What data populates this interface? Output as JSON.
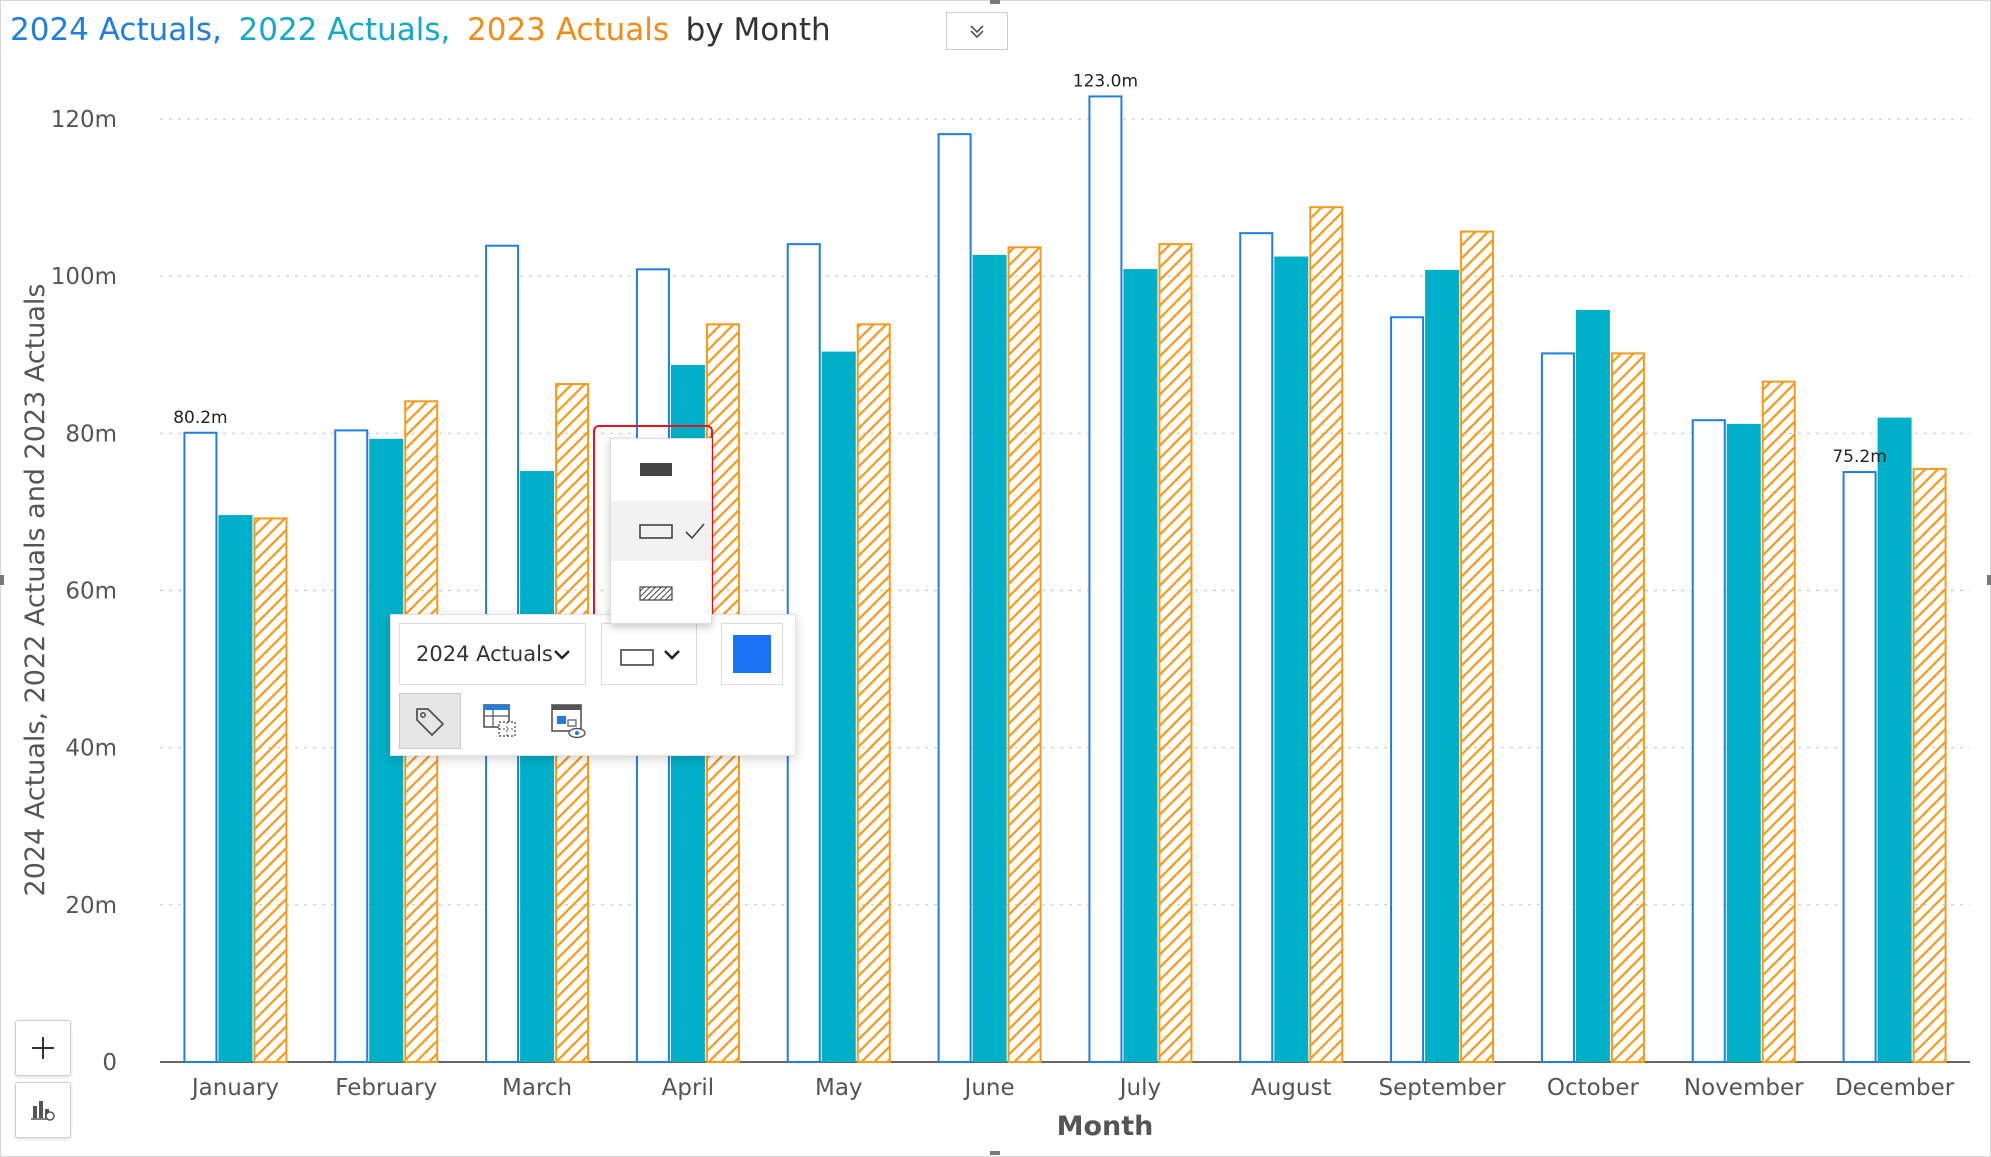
{
  "title_parts": [
    {
      "text": "2024 Actuals,",
      "color": "#1f7fe0"
    },
    {
      "text": "2022 Actuals,",
      "color": "#14a9c9"
    },
    {
      "text": "2023 Actuals",
      "color": "#f28c14"
    },
    {
      "text": "by Month",
      "color": "#333333"
    }
  ],
  "colors": {
    "series_2024": "#1f7fe0",
    "series_2022": "#00b0c8",
    "series_2023": "#f59a1b",
    "swatch": "#1a73f5",
    "highlight_outline": "#e81123"
  },
  "toolbar": {
    "series_select_value": "2024 Actuals",
    "fill_icon": "outline-rect-icon",
    "icons": [
      "tag-icon",
      "data-table-icon",
      "chart-view-icon"
    ]
  },
  "fill_dropdown": {
    "options": [
      {
        "name": "solid-fill",
        "icon": "solid-rect-icon",
        "selected": false
      },
      {
        "name": "outline-fill",
        "icon": "outline-rect-icon",
        "selected": true
      },
      {
        "name": "hatched-fill",
        "icon": "hatch-rect-icon",
        "selected": false
      }
    ]
  },
  "zoom": {
    "in_icon": "plus-icon",
    "reset_icon": "chart-zoom-icon"
  },
  "chart_data": {
    "type": "bar",
    "title": "2024 Actuals, 2022 Actuals, 2023 Actuals by Month",
    "xlabel": "Month",
    "ylabel": "2024 Actuals, 2022 Actuals and 2023 Actuals",
    "categories": [
      "January",
      "February",
      "March",
      "April",
      "May",
      "June",
      "July",
      "August",
      "September",
      "October",
      "November",
      "December"
    ],
    "series": [
      {
        "name": "2024 Actuals",
        "style": "outline",
        "values": [
          80.2,
          80.5,
          104.0,
          101.0,
          104.2,
          118.2,
          123.0,
          105.6,
          94.9,
          90.3,
          81.8,
          75.2
        ]
      },
      {
        "name": "2022 Actuals",
        "style": "solid",
        "values": [
          69.6,
          79.3,
          75.2,
          88.7,
          90.4,
          102.7,
          100.9,
          102.5,
          100.8,
          95.7,
          81.2,
          82.0
        ]
      },
      {
        "name": "2023 Actuals",
        "style": "hatched",
        "values": [
          69.3,
          84.2,
          86.4,
          94.0,
          94.0,
          103.8,
          104.2,
          108.9,
          105.8,
          90.3,
          86.7,
          75.6
        ]
      }
    ],
    "data_labels": [
      {
        "category": "January",
        "series": "2024 Actuals",
        "text": "80.2m"
      },
      {
        "category": "July",
        "series": "2024 Actuals",
        "text": "123.0m"
      },
      {
        "category": "December",
        "series": "2024 Actuals",
        "text": "75.2m"
      }
    ],
    "yticks": [
      {
        "value": 0,
        "label": "0"
      },
      {
        "value": 20,
        "label": "20m"
      },
      {
        "value": 40,
        "label": "40m"
      },
      {
        "value": 60,
        "label": "60m"
      },
      {
        "value": 80,
        "label": "80m"
      },
      {
        "value": 100,
        "label": "100m"
      },
      {
        "value": 120,
        "label": "120m"
      }
    ],
    "ylim": [
      0,
      120
    ],
    "grid": true,
    "legend": "title"
  }
}
